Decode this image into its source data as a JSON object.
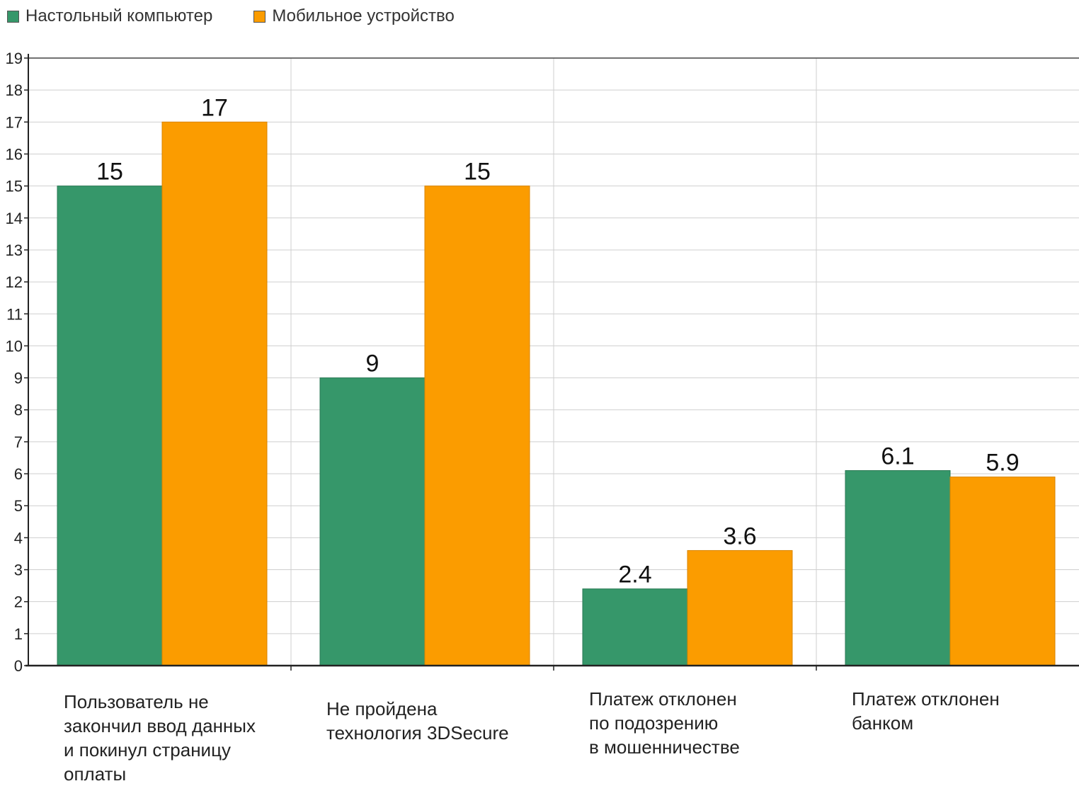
{
  "chart_data": {
    "type": "bar",
    "categories": [
      [
        "Пользователь не",
        "закончил ввод данных",
        "и покинул страницу",
        "оплаты"
      ],
      [
        "Не пройдена",
        "технология 3DSecure"
      ],
      [
        "Платеж отклонен",
        "по подозрению",
        "в мошенничестве"
      ],
      [
        "Платеж отклонен",
        "банком"
      ]
    ],
    "series": [
      {
        "name": "Настольный компьютер",
        "color": "#36976a",
        "values": [
          15,
          9,
          2.4,
          6.1
        ],
        "labels": [
          "15",
          "9",
          "2.4",
          "6.1"
        ]
      },
      {
        "name": "Мобильное устройство",
        "color": "#fb9c00",
        "values": [
          17,
          15,
          3.6,
          5.9
        ],
        "labels": [
          "17",
          "15",
          "3.6",
          "5.9"
        ]
      }
    ],
    "ylim": [
      0,
      19
    ],
    "yticks": [
      "0",
      "1",
      "2",
      "3",
      "4",
      "5",
      "6",
      "7",
      "8",
      "9",
      "10",
      "11",
      "12",
      "13",
      "14",
      "15",
      "16",
      "17",
      "18",
      "19"
    ],
    "grid": true,
    "legend_position": "top-left",
    "title": "",
    "xlabel": "",
    "ylabel": ""
  }
}
